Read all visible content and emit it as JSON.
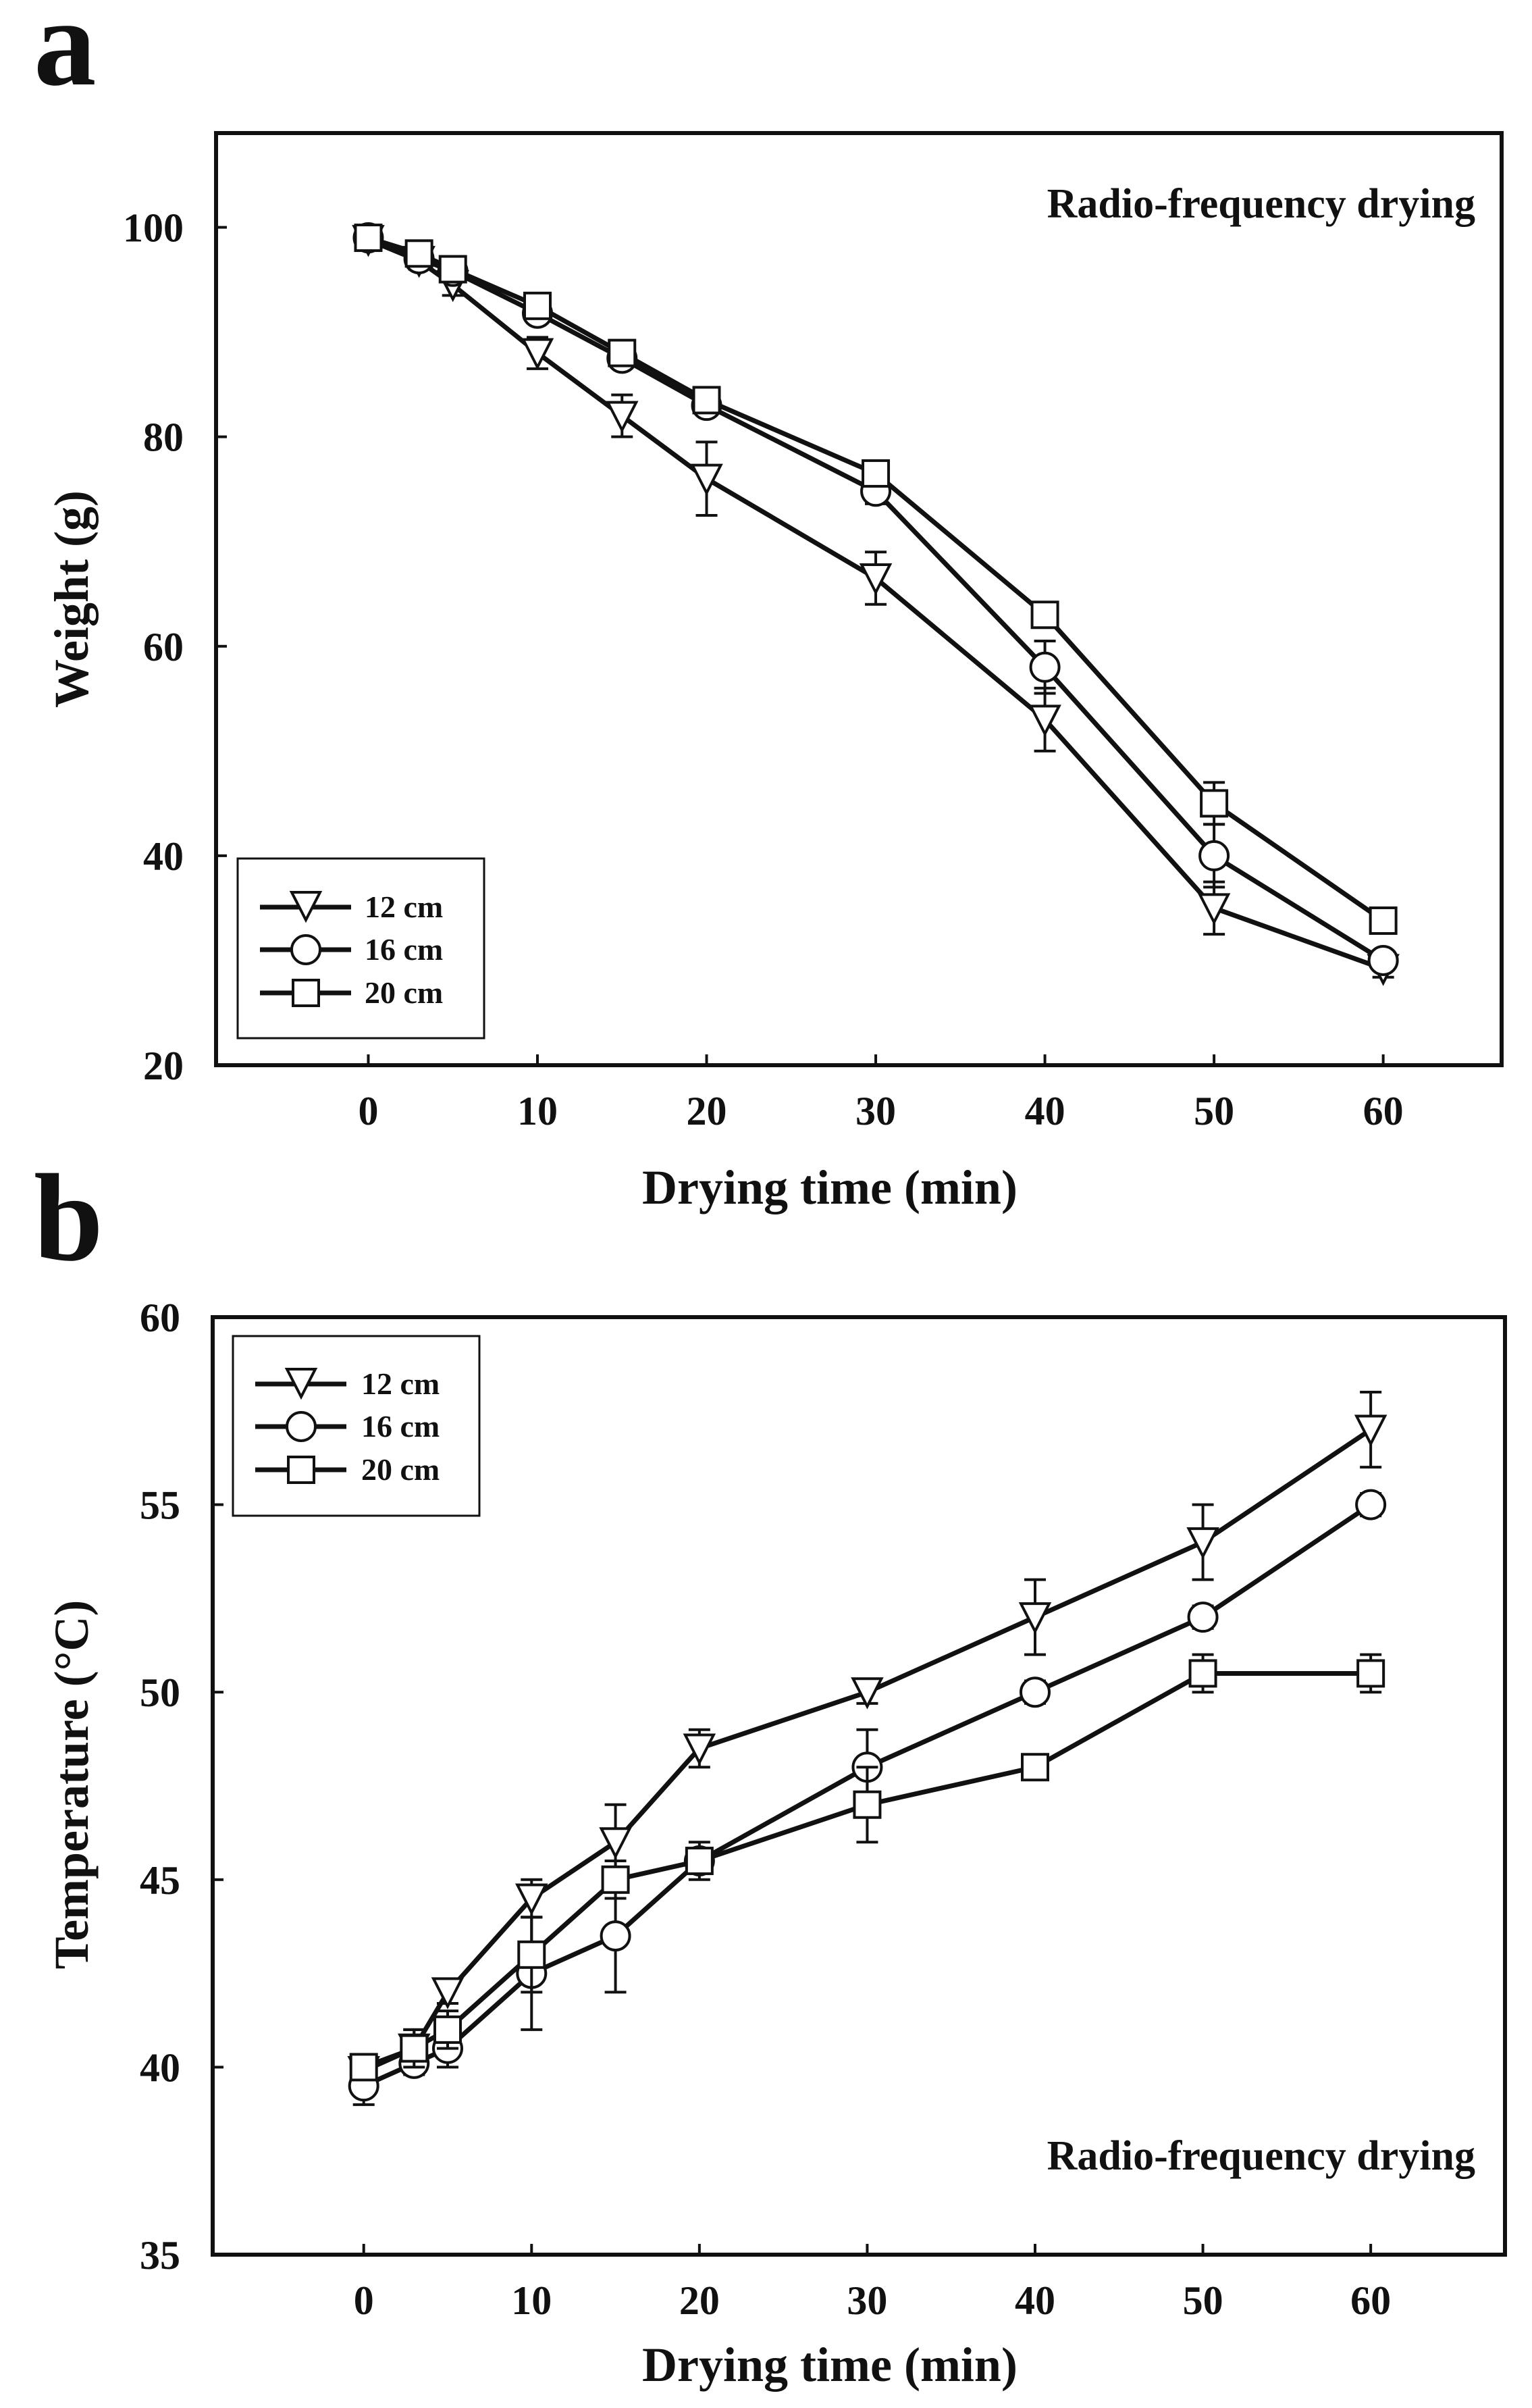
{
  "colors": {
    "ink": "#111111",
    "background": "#ffffff",
    "marker_fill": "#ffffff"
  },
  "chart_data": [
    {
      "panel": "a",
      "type": "line",
      "title": "",
      "annotation": "Radio-frequency drying",
      "xlabel": "Drying time (min)",
      "ylabel": "Weight (g)",
      "xlim": [
        -9,
        67
      ],
      "ylim": [
        20,
        109
      ],
      "xticks": [
        0,
        10,
        20,
        30,
        40,
        50,
        60
      ],
      "yticks": [
        20,
        40,
        60,
        80,
        100
      ],
      "legend_position": "bottom-left",
      "x": [
        0,
        3,
        5,
        10,
        15,
        20,
        30,
        40,
        50,
        60
      ],
      "series": [
        {
          "name": "12 cm",
          "marker": "triangle-down",
          "values": [
            98.8,
            96.8,
            94.5,
            88.0,
            82.0,
            76.0,
            66.5,
            53.0,
            35.0,
            29.2
          ],
          "errors": [
            0.8,
            0.8,
            1.0,
            1.5,
            2.0,
            3.5,
            2.5,
            3.0,
            2.5,
            0.8
          ]
        },
        {
          "name": "16 cm",
          "marker": "circle",
          "values": [
            99.0,
            97.0,
            95.8,
            91.8,
            87.5,
            83.0,
            74.8,
            58.0,
            40.0,
            30.0
          ],
          "errors": [
            0.5,
            0.5,
            0.6,
            0.8,
            0.8,
            0.8,
            1.2,
            2.5,
            3.0,
            0.8
          ]
        },
        {
          "name": "20 cm",
          "marker": "square",
          "values": [
            99.0,
            97.5,
            96.0,
            92.5,
            88.0,
            83.5,
            76.5,
            63.0,
            45.0,
            33.8
          ],
          "errors": [
            0.3,
            0.4,
            0.5,
            0.6,
            0.6,
            0.6,
            0.8,
            0.8,
            2.0,
            0.6
          ]
        }
      ]
    },
    {
      "panel": "b",
      "type": "line",
      "title": "",
      "annotation": "Radio-frequency drying",
      "xlabel": "Drying time (min)",
      "ylabel": "Temperature (°C)",
      "xlim": [
        -9,
        68
      ],
      "ylim": [
        35,
        60
      ],
      "xticks": [
        0,
        10,
        20,
        30,
        40,
        50,
        60
      ],
      "yticks": [
        35,
        40,
        45,
        50,
        55,
        60
      ],
      "legend_position": "top-left",
      "x": [
        0,
        3,
        5,
        10,
        15,
        20,
        30,
        40,
        50,
        60
      ],
      "series": [
        {
          "name": "12 cm",
          "marker": "triangle-down",
          "values": [
            39.9,
            40.5,
            42.0,
            44.5,
            46.0,
            48.5,
            50.0,
            52.0,
            54.0,
            57.0
          ],
          "errors": [
            0.3,
            0.5,
            0.3,
            0.5,
            1.0,
            0.5,
            0.3,
            1.0,
            1.0,
            1.0
          ]
        },
        {
          "name": "16 cm",
          "marker": "circle",
          "values": [
            39.5,
            40.1,
            40.5,
            42.5,
            43.5,
            45.5,
            48.0,
            50.0,
            52.0,
            55.0
          ],
          "errors": [
            0.5,
            0.3,
            0.5,
            1.5,
            1.5,
            0.3,
            1.0,
            0.3,
            0.3,
            0.3
          ]
        },
        {
          "name": "20 cm",
          "marker": "square",
          "values": [
            40.0,
            40.5,
            41.0,
            43.0,
            45.0,
            45.5,
            47.0,
            48.0,
            50.5,
            50.5
          ],
          "errors": [
            0.3,
            0.5,
            0.5,
            1.0,
            0.5,
            0.5,
            1.0,
            0.3,
            0.5,
            0.5
          ]
        }
      ]
    }
  ]
}
